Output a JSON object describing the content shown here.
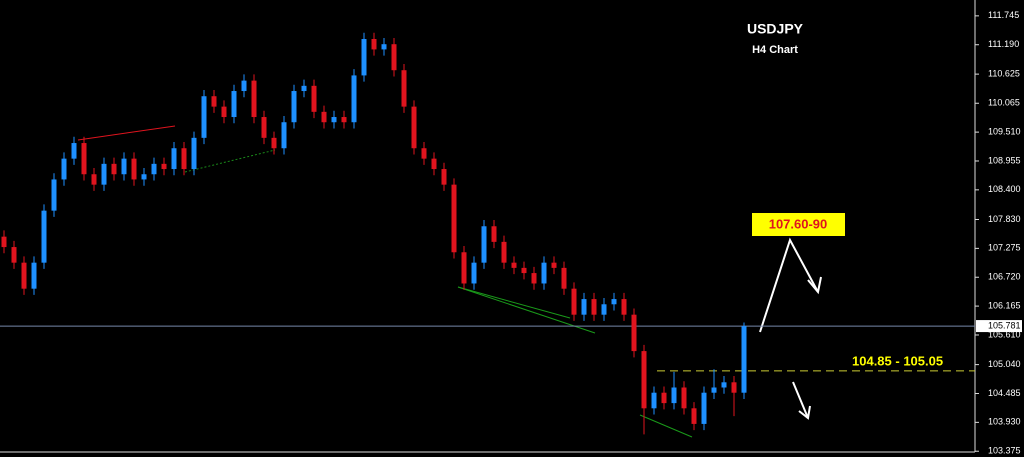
{
  "chart_data": {
    "type": "candlestick",
    "title": "USDJPY",
    "subtitle": "H4 Chart",
    "up_color": "#1e90ff",
    "down_color": "#e0141e",
    "ylim": [
      103.36,
      112.05
    ],
    "yticks": [
      111.745,
      {
        "value": 111.19,
        "label": "111.190"
      },
      110.625,
      110.065,
      {
        "value": 109.51,
        "label": "109.510"
      },
      108.955,
      {
        "value": 108.4,
        "label": "108.400"
      },
      {
        "value": 107.83,
        "label": "107.830"
      },
      107.275,
      {
        "value": 106.72,
        "label": "106.720"
      },
      106.165,
      {
        "value": 105.61,
        "label": "105.610"
      },
      {
        "value": 105.04,
        "label": "105.040"
      },
      104.485,
      {
        "value": 103.93,
        "label": "103.930"
      },
      103.375
    ],
    "last_price": 105.781,
    "target_label": "107.60-90",
    "zone_label": "104.85 - 105.05",
    "zone_level": 104.92,
    "ohlc": [
      [
        107.5,
        107.62,
        107.18,
        107.3
      ],
      [
        107.3,
        107.42,
        106.88,
        107.0
      ],
      [
        107.0,
        107.12,
        106.38,
        106.5
      ],
      [
        106.5,
        107.12,
        106.38,
        107.0
      ],
      [
        107.0,
        108.12,
        106.88,
        108.0
      ],
      [
        108.0,
        108.72,
        107.88,
        108.6
      ],
      [
        108.6,
        109.12,
        108.48,
        109.0
      ],
      [
        109.0,
        109.42,
        108.88,
        109.3
      ],
      [
        109.3,
        109.42,
        108.58,
        108.7
      ],
      [
        108.7,
        108.82,
        108.38,
        108.5
      ],
      [
        108.5,
        109.02,
        108.38,
        108.9
      ],
      [
        108.9,
        109.02,
        108.58,
        108.7
      ],
      [
        108.7,
        109.12,
        108.58,
        109.0
      ],
      [
        109.0,
        109.12,
        108.48,
        108.6
      ],
      [
        108.6,
        108.82,
        108.48,
        108.7
      ],
      [
        108.7,
        109.02,
        108.58,
        108.9
      ],
      [
        108.9,
        109.02,
        108.68,
        108.8
      ],
      [
        108.8,
        109.32,
        108.68,
        109.2
      ],
      [
        109.2,
        109.32,
        108.68,
        108.8
      ],
      [
        108.8,
        109.52,
        108.68,
        109.4
      ],
      [
        109.4,
        110.32,
        109.28,
        110.2
      ],
      [
        110.2,
        110.32,
        109.88,
        110.0
      ],
      [
        110.0,
        110.12,
        109.68,
        109.8
      ],
      [
        109.8,
        110.42,
        109.68,
        110.3
      ],
      [
        110.3,
        110.62,
        110.18,
        110.5
      ],
      [
        110.5,
        110.62,
        109.68,
        109.8
      ],
      [
        109.8,
        109.92,
        109.28,
        109.4
      ],
      [
        109.4,
        109.52,
        109.08,
        109.2
      ],
      [
        109.2,
        109.82,
        109.08,
        109.7
      ],
      [
        109.7,
        110.42,
        109.58,
        110.3
      ],
      [
        110.3,
        110.52,
        110.18,
        110.4
      ],
      [
        110.4,
        110.52,
        109.78,
        109.9
      ],
      [
        109.9,
        110.02,
        109.58,
        109.7
      ],
      [
        109.7,
        109.92,
        109.58,
        109.8
      ],
      [
        109.8,
        109.92,
        109.58,
        109.7
      ],
      [
        109.7,
        110.72,
        109.58,
        110.6
      ],
      [
        110.6,
        111.42,
        110.48,
        111.3
      ],
      [
        111.3,
        111.42,
        110.98,
        111.1
      ],
      [
        111.1,
        111.32,
        110.98,
        111.2
      ],
      [
        111.2,
        111.32,
        110.58,
        110.7
      ],
      [
        110.7,
        110.82,
        109.88,
        110.0
      ],
      [
        110.0,
        110.12,
        109.08,
        109.2
      ],
      [
        109.2,
        109.32,
        108.88,
        109.0
      ],
      [
        109.0,
        109.12,
        108.68,
        108.8
      ],
      [
        108.8,
        108.92,
        108.38,
        108.5
      ],
      [
        108.5,
        108.62,
        107.08,
        107.2
      ],
      [
        107.2,
        107.32,
        106.48,
        106.6
      ],
      [
        106.6,
        107.12,
        106.48,
        107.0
      ],
      [
        107.0,
        107.82,
        106.88,
        107.7
      ],
      [
        107.7,
        107.82,
        107.28,
        107.4
      ],
      [
        107.4,
        107.52,
        106.88,
        107.0
      ],
      [
        107.0,
        107.12,
        106.78,
        106.9
      ],
      [
        106.9,
        107.02,
        106.68,
        106.8
      ],
      [
        106.8,
        106.92,
        106.48,
        106.6
      ],
      [
        106.6,
        107.12,
        106.48,
        107.0
      ],
      [
        107.0,
        107.12,
        106.78,
        106.9
      ],
      [
        106.9,
        107.02,
        106.38,
        106.5
      ],
      [
        106.5,
        106.62,
        105.88,
        106.0
      ],
      [
        106.0,
        106.42,
        105.88,
        106.3
      ],
      [
        106.3,
        106.42,
        105.88,
        106.0
      ],
      [
        106.0,
        106.32,
        105.88,
        106.2
      ],
      [
        106.2,
        106.42,
        106.08,
        106.3
      ],
      [
        106.3,
        106.42,
        105.88,
        106.0
      ],
      [
        106.0,
        106.12,
        105.18,
        105.3
      ],
      [
        105.3,
        105.42,
        103.7,
        104.2
      ],
      [
        104.2,
        104.62,
        104.08,
        104.5
      ],
      [
        104.5,
        104.62,
        104.18,
        104.3
      ],
      [
        104.3,
        104.9,
        104.18,
        104.6
      ],
      [
        104.6,
        104.72,
        104.08,
        104.2
      ],
      [
        104.2,
        104.32,
        103.78,
        103.9
      ],
      [
        103.9,
        104.62,
        103.78,
        104.5
      ],
      [
        104.5,
        104.95,
        104.38,
        104.6
      ],
      [
        104.6,
        104.82,
        104.48,
        104.7
      ],
      [
        104.7,
        104.82,
        104.05,
        104.5
      ],
      [
        104.5,
        105.85,
        104.38,
        105.78
      ]
    ]
  }
}
